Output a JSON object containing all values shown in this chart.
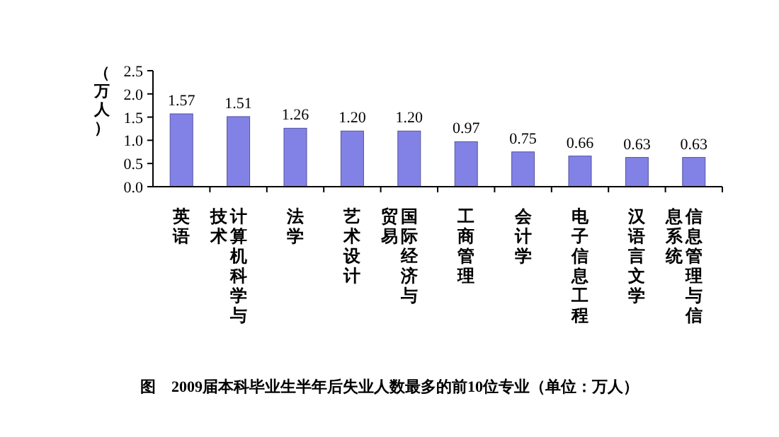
{
  "chart_data": {
    "type": "bar",
    "title": "图　2009届本科毕业生半年后失业人数最多的前10位专业（单位：万人）",
    "ylabel": "（万人）",
    "categories": [
      "英语",
      "计算机科学与技术",
      "法学",
      "艺术设计",
      "国际经济与贸易",
      "工商管理",
      "会计学",
      "电子信息工程",
      "汉语言文学",
      "信息管理与信息系统"
    ],
    "values": [
      1.57,
      1.51,
      1.26,
      1.2,
      1.2,
      0.97,
      0.75,
      0.66,
      0.63,
      0.63
    ],
    "color": "#8282e6",
    "ylim": [
      0,
      2.5
    ],
    "yticks": [
      {
        "value": 0,
        "label": "0.0"
      },
      {
        "value": 0.5,
        "label": "0.5"
      },
      {
        "value": 1,
        "label": "1.0"
      },
      {
        "value": 1.5,
        "label": "1.5"
      },
      {
        "value": 2,
        "label": "2.0"
      },
      {
        "value": 2.5,
        "label": "2.5"
      }
    ],
    "value_labels": [
      "1.57",
      "1.51",
      "1.26",
      "1.20",
      "1.20",
      "0.97",
      "0.75",
      "0.66",
      "0.63",
      "0.63"
    ]
  }
}
